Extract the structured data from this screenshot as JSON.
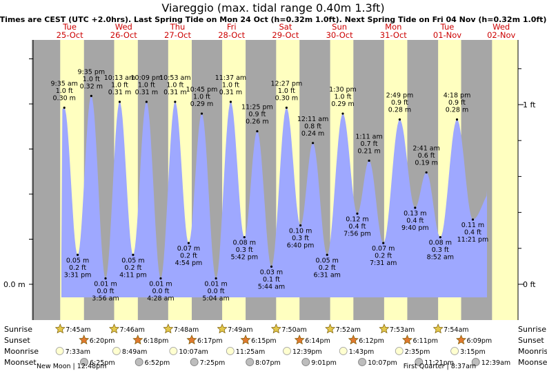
{
  "header": {
    "title": "Viareggio (max. tidal range 0.40m 1.3ft)",
    "subtitle": "Times are CEST (UTC +2.0hrs). Last Spring Tide on Mon 24 Oct (h=0.32m 1.0ft). Next Spring Tide on Fri 04 Nov (h=0.32m 1.0ft)"
  },
  "colors": {
    "night": "#a6a6a6",
    "day": "#ffffc0",
    "tide": "#9ea8ff",
    "sun": "#e3c84c",
    "sunset": "#e07a30",
    "moon": "#ffffd0",
    "moonset": "#bdbdbd",
    "day_label": "#cc0000"
  },
  "chart_data": {
    "type": "area",
    "y_unit_left": "m",
    "y_unit_right": "ft",
    "left_axis_labels": [
      "0.0 m"
    ],
    "right_axis_labels": [
      "1 ft",
      "0 ft"
    ],
    "days": [
      {
        "day": "Tue",
        "date": "25-Oct"
      },
      {
        "day": "Wed",
        "date": "26-Oct"
      },
      {
        "day": "Thu",
        "date": "27-Oct"
      },
      {
        "day": "Fri",
        "date": "28-Oct"
      },
      {
        "day": "Sat",
        "date": "29-Oct"
      },
      {
        "day": "Sun",
        "date": "30-Oct"
      },
      {
        "day": "Mon",
        "date": "31-Oct"
      },
      {
        "day": "Tue",
        "date": "01-Nov"
      },
      {
        "day": "Wed",
        "date": "02-Nov"
      }
    ],
    "tides": [
      {
        "type": "high",
        "day": 0,
        "time": "9:35 am",
        "ft": "1.0 ft",
        "m": 0.3,
        "m_label": "0.30 m"
      },
      {
        "type": "low",
        "day": 0,
        "time": "3:31 pm",
        "ft": "0.2 ft",
        "m": 0.05,
        "m_label": "0.05 m"
      },
      {
        "type": "high",
        "day": 0,
        "time": "9:35 pm",
        "ft": "1.0 ft",
        "m": 0.32,
        "m_label": "0.32 m"
      },
      {
        "type": "low",
        "day": 1,
        "time": "3:56 am",
        "ft": "0.0 ft",
        "m": 0.01,
        "m_label": "0.01 m"
      },
      {
        "type": "high",
        "day": 1,
        "time": "10:13 am",
        "ft": "1.0 ft",
        "m": 0.31,
        "m_label": "0.31 m"
      },
      {
        "type": "low",
        "day": 1,
        "time": "4:11 pm",
        "ft": "0.2 ft",
        "m": 0.05,
        "m_label": "0.05 m"
      },
      {
        "type": "high",
        "day": 1,
        "time": "10:09 pm",
        "ft": "1.0 ft",
        "m": 0.31,
        "m_label": "0.31 m"
      },
      {
        "type": "low",
        "day": 2,
        "time": "4:28 am",
        "ft": "0.0 ft",
        "m": 0.01,
        "m_label": "0.01 m"
      },
      {
        "type": "high",
        "day": 2,
        "time": "10:53 am",
        "ft": "1.0 ft",
        "m": 0.31,
        "m_label": "0.31 m"
      },
      {
        "type": "low",
        "day": 2,
        "time": "4:54 pm",
        "ft": "0.2 ft",
        "m": 0.07,
        "m_label": "0.07 m"
      },
      {
        "type": "high",
        "day": 2,
        "time": "10:45 pm",
        "ft": "1.0 ft",
        "m": 0.29,
        "m_label": "0.29 m"
      },
      {
        "type": "low",
        "day": 3,
        "time": "5:04 am",
        "ft": "0.0 ft",
        "m": 0.01,
        "m_label": "0.01 m"
      },
      {
        "type": "high",
        "day": 3,
        "time": "11:37 am",
        "ft": "1.0 ft",
        "m": 0.31,
        "m_label": "0.31 m"
      },
      {
        "type": "low",
        "day": 3,
        "time": "5:42 pm",
        "ft": "0.3 ft",
        "m": 0.08,
        "m_label": "0.08 m"
      },
      {
        "type": "high",
        "day": 3,
        "time": "11:25 pm",
        "ft": "0.9 ft",
        "m": 0.26,
        "m_label": "0.26 m"
      },
      {
        "type": "low",
        "day": 4,
        "time": "5:44 am",
        "ft": "0.1 ft",
        "m": 0.03,
        "m_label": "0.03 m"
      },
      {
        "type": "high",
        "day": 4,
        "time": "12:27 pm",
        "ft": "1.0 ft",
        "m": 0.3,
        "m_label": "0.30 m"
      },
      {
        "type": "low",
        "day": 4,
        "time": "6:40 pm",
        "ft": "0.3 ft",
        "m": 0.1,
        "m_label": "0.10 m"
      },
      {
        "type": "high",
        "day": 5,
        "time": "12:11 am",
        "ft": "0.8 ft",
        "m": 0.24,
        "m_label": "0.24 m"
      },
      {
        "type": "low",
        "day": 5,
        "time": "6:31 am",
        "ft": "0.2 ft",
        "m": 0.05,
        "m_label": "0.05 m"
      },
      {
        "type": "high",
        "day": 5,
        "time": "1:30 pm",
        "ft": "1.0 ft",
        "m": 0.29,
        "m_label": "0.29 m"
      },
      {
        "type": "low",
        "day": 5,
        "time": "7:56 pm",
        "ft": "0.4 ft",
        "m": 0.12,
        "m_label": "0.12 m"
      },
      {
        "type": "high",
        "day": 6,
        "time": "1:11 am",
        "ft": "0.7 ft",
        "m": 0.21,
        "m_label": "0.21 m"
      },
      {
        "type": "low",
        "day": 6,
        "time": "7:31 am",
        "ft": "0.2 ft",
        "m": 0.07,
        "m_label": "0.07 m"
      },
      {
        "type": "high",
        "day": 6,
        "time": "2:49 pm",
        "ft": "0.9 ft",
        "m": 0.28,
        "m_label": "0.28 m"
      },
      {
        "type": "low",
        "day": 6,
        "time": "9:40 pm",
        "ft": "0.4 ft",
        "m": 0.13,
        "m_label": "0.13 m"
      },
      {
        "type": "high",
        "day": 7,
        "time": "2:41 am",
        "ft": "0.6 ft",
        "m": 0.19,
        "m_label": "0.19 m"
      },
      {
        "type": "low",
        "day": 7,
        "time": "8:52 am",
        "ft": "0.3 ft",
        "m": 0.08,
        "m_label": "0.08 m"
      },
      {
        "type": "high",
        "day": 7,
        "time": "4:18 pm",
        "ft": "0.9 ft",
        "m": 0.28,
        "m_label": "0.28 m"
      },
      {
        "type": "low",
        "day": 7,
        "time": "11:21 pm",
        "ft": "0.4 ft",
        "m": 0.11,
        "m_label": "0.11 m"
      }
    ],
    "sun_moon": {
      "row_labels": [
        "Sunrise",
        "Sunset",
        "Moonrise",
        "Moonset"
      ],
      "sunrise": [
        "7:45am",
        "7:46am",
        "7:48am",
        "7:49am",
        "7:50am",
        "7:52am",
        "7:53am",
        "7:54am"
      ],
      "sunset": [
        "6:20pm",
        "6:18pm",
        "6:17pm",
        "6:15pm",
        "6:14pm",
        "6:12pm",
        "6:11pm",
        "6:09pm"
      ],
      "moonrise": [
        {
          "day": 0,
          "time": "7:33am"
        },
        {
          "day": 1,
          "time": "8:49am"
        },
        {
          "day": 2,
          "time": "10:07am"
        },
        {
          "day": 3,
          "time": "11:25am"
        },
        {
          "day": 4,
          "time": "12:39pm"
        },
        {
          "day": 5,
          "time": "1:43pm"
        },
        {
          "day": 6,
          "time": "2:35pm"
        },
        {
          "day": 7,
          "time": "3:15pm"
        }
      ],
      "moonset": [
        {
          "day": 0,
          "time": "6:25pm"
        },
        {
          "day": 1,
          "time": "6:52pm"
        },
        {
          "day": 2,
          "time": "7:25pm"
        },
        {
          "day": 3,
          "time": "8:07pm"
        },
        {
          "day": 4,
          "time": "9:01pm"
        },
        {
          "day": 5,
          "time": "10:07pm"
        },
        {
          "day": 6,
          "time": "11:21pm"
        },
        {
          "day": 8,
          "time": "12:39am"
        }
      ],
      "phases": [
        {
          "text": "New Moon | 12:48pm",
          "day": 0,
          "time": "12:48pm"
        },
        {
          "text": "First Quarter | 8:37am",
          "day": 7,
          "time": "8:37am"
        }
      ]
    }
  }
}
